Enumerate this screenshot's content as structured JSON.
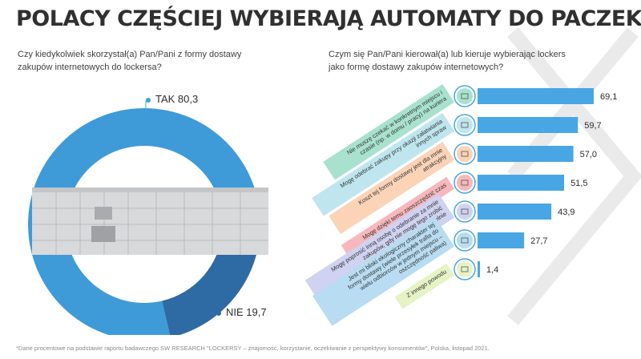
{
  "title": "POLACY CZĘŚCIEJ WYBIERAJĄ AUTOMATY DO PACZEK",
  "question_left": "Czy kiedykolwiek skorzystał(a) Pan/Pani z formy dostawy zakupów internetowych do lockersa?",
  "question_right": "Czym się Pan/Pani kierował(a) lub kieruje wybierając lockers jako formę dostawy zakupów internetowych?",
  "donut": {
    "tak_text": "TAK 80,3",
    "nie_text": "NIE 19,7"
  },
  "footnote": "*Dane procentowe na podstawie raportu badawczego SW RESEARCH \"LOCKERSY – znajomość, korzystanie, oczekiwanie z perspektywy konsumentów\", Polska, listopad 2021.",
  "colors": {
    "tak": "#3f9bd8",
    "nie": "#2e6ba4",
    "bar": "#48a6e4"
  },
  "chart_data": [
    {
      "type": "pie",
      "categories": [
        "TAK",
        "NIE"
      ],
      "values": [
        80.3,
        19.7
      ]
    },
    {
      "type": "bar",
      "orientation": "horizontal",
      "categories": [
        "Nie muszę czekać w konkretnym miejscu i czasie (np. w domu / pracy) na kuriera",
        "Mogę odebrać zakupy przy okazji załatwiania innych spraw",
        "Koszt tej formy dostawy jest dla mnie atrakcyjny",
        "Mogę dzięki temu zaoszczędzić czas",
        "Mogę poprosić inną osobę o odebranie za mnie zakupów, gdy nie mogę tego zrobić samodzielnie",
        "Jest mi bliski ekologiczny charakter tej formy dostawy (wiele przesyłek trafia do wielu odbiorców w jednym miejscu – oszczędność paliwa)",
        "Z innego powodu"
      ],
      "values": [
        69.1,
        59.7,
        57.0,
        51.5,
        43.9,
        27.7,
        1.4
      ],
      "value_labels": [
        "69,1",
        "59,7",
        "57,0",
        "51,5",
        "43,9",
        "27,7",
        "1,4"
      ],
      "label_colors": [
        "#a8e2cf",
        "#bfe6ef",
        "#fbd3b6",
        "#f7b7bb",
        "#cfd2f0",
        "#b8dcf2",
        "#e6f3c5"
      ],
      "icons": [
        "delivery-van-icon",
        "shopping-bag-icon",
        "money-icon",
        "clock-icon",
        "person-icon",
        "eco-icon",
        "box-icon"
      ],
      "xlim": [
        0,
        69.1
      ]
    }
  ]
}
